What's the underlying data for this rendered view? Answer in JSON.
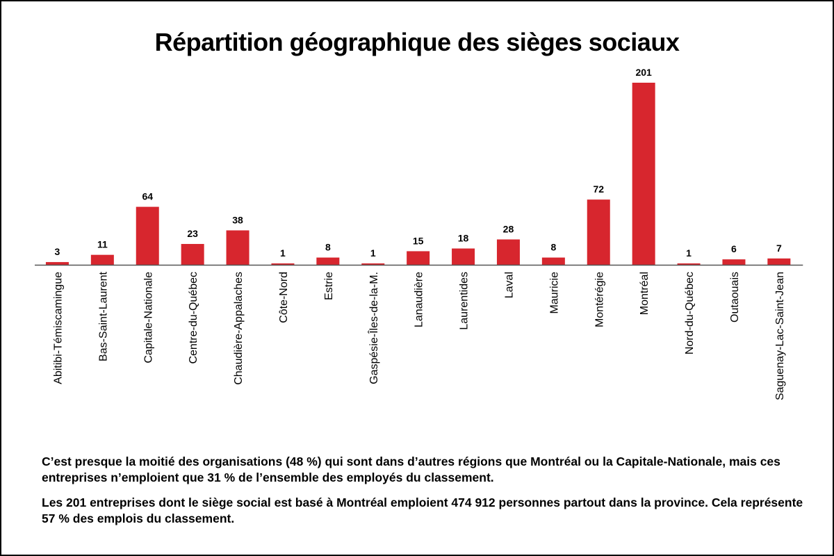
{
  "page": {
    "title": "Répartition géographique des sièges sociaux",
    "notes": [
      "C’est presque la moitié des organisations (48 %) qui sont dans d’autres régions que Montréal ou la Capitale-Nationale, mais ces entreprises n’emploient que 31 % de l’ensemble des employés du classement.",
      "Les 201 entreprises dont le siège social est basé à Montréal emploient 474 912 personnes partout dans la province. Cela représente 57 % des emplois du classement."
    ]
  },
  "chart_data": {
    "type": "bar",
    "title": "Répartition géographique des sièges sociaux",
    "categories": [
      "Abitibi-Témiscamingue",
      "Bas-Saint-Laurent",
      "Capitale-Nationale",
      "Centre-du-Québec",
      "Chaudière-Appalaches",
      "Côte-Nord",
      "Estrie",
      "Gaspésie-Îles-de-la-M.",
      "Lanaudière",
      "Laurentides",
      "Laval",
      "Mauricie",
      "Montérégie",
      "Montréal",
      "Nord-du-Québec",
      "Outaouais",
      "Saguenay-Lac-Saint-Jean"
    ],
    "values": [
      3,
      11,
      64,
      23,
      38,
      1,
      8,
      1,
      15,
      18,
      28,
      8,
      72,
      201,
      1,
      6,
      7
    ],
    "xlabel": "",
    "ylabel": "",
    "ylim": [
      0,
      201
    ],
    "grid": false,
    "legend": "none",
    "bar_color": "#d7262e",
    "axis_color": "#555555"
  }
}
